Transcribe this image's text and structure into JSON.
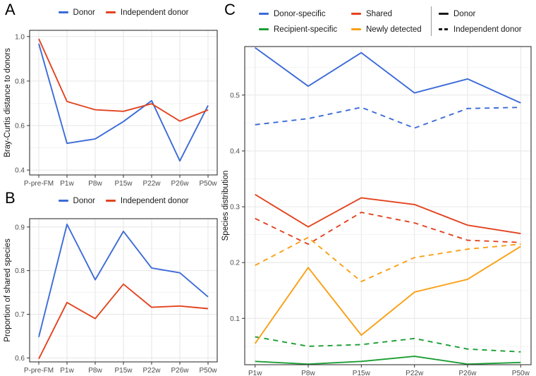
{
  "panels": {
    "A": {
      "letter": "A",
      "ylabel": "Bray-Curtis distance to donors"
    },
    "B": {
      "letter": "B",
      "ylabel": "Proportion of shared species"
    },
    "C": {
      "letter": "C",
      "ylabel": "Species distribution"
    }
  },
  "colors": {
    "blue": "#3C6BD8",
    "red": "#E3431F",
    "green": "#1C9E34",
    "orange": "#F9A014",
    "black": "#1A1A1A",
    "grid_major": "#E6E6E6",
    "grid_minor": "#F3F3F3",
    "panel_border": "#333333",
    "tick_text": "#4D4D4D"
  },
  "chart_data": [
    {
      "type": "line",
      "panel": "A",
      "ylabel": "Bray-Curtis distance to donors",
      "categories": [
        "P-pre-FM",
        "P1w",
        "P8w",
        "P15w",
        "P22w",
        "P26w",
        "P50w"
      ],
      "yticks": [
        "0.4",
        "0.6",
        "0.8",
        "1.0"
      ],
      "ylim": [
        0.378,
        1.028
      ],
      "grid": true,
      "legend_position": "top",
      "legend": [
        {
          "label": "Donor",
          "color": "#3C6BD8",
          "dash": "solid"
        },
        {
          "label": "Independent donor",
          "color": "#E3431F",
          "dash": "solid"
        }
      ],
      "series": [
        {
          "name": "Donor",
          "color": "#3C6BD8",
          "dash": "solid",
          "values": [
            0.968,
            0.52,
            0.54,
            0.618,
            0.712,
            0.441,
            0.69
          ]
        },
        {
          "name": "Independent donor",
          "color": "#E3431F",
          "dash": "solid",
          "values": [
            0.99,
            0.708,
            0.671,
            0.664,
            0.698,
            0.62,
            0.67
          ]
        }
      ]
    },
    {
      "type": "line",
      "panel": "B",
      "ylabel": "Proportion of shared species",
      "categories": [
        "P-pre-FM",
        "P1w",
        "P8w",
        "P15w",
        "P22w",
        "P26w",
        "P50w"
      ],
      "yticks": [
        "0.6",
        "0.7",
        "0.8",
        "0.9"
      ],
      "ylim": [
        0.591,
        0.919
      ],
      "grid": true,
      "legend_position": "top",
      "legend": [
        {
          "label": "Donor",
          "color": "#3C6BD8",
          "dash": "solid"
        },
        {
          "label": "Independent donor",
          "color": "#E3431F",
          "dash": "solid"
        }
      ],
      "series": [
        {
          "name": "Donor",
          "color": "#3C6BD8",
          "dash": "solid",
          "values": [
            0.648,
            0.906,
            0.779,
            0.89,
            0.806,
            0.795,
            0.74
          ]
        },
        {
          "name": "Independent donor",
          "color": "#E3431F",
          "dash": "solid",
          "values": [
            0.598,
            0.727,
            0.69,
            0.769,
            0.716,
            0.719,
            0.713
          ]
        }
      ]
    },
    {
      "type": "line",
      "panel": "C",
      "ylabel": "Species distribution",
      "categories": [
        "P1w",
        "P8w",
        "P15w",
        "P22w",
        "P26w",
        "P50w"
      ],
      "yticks": [
        "0.1",
        "0.2",
        "0.3",
        "0.4",
        "0.5"
      ],
      "ylim": [
        0.017,
        0.587
      ],
      "grid": true,
      "legend_position": "top",
      "color_legend": [
        {
          "label": "Donor-specific",
          "color": "#3C6BD8"
        },
        {
          "label": "Recipient-specific",
          "color": "#1C9E34"
        },
        {
          "label": "Shared",
          "color": "#E3431F"
        },
        {
          "label": "Newly detected",
          "color": "#F9A014"
        }
      ],
      "linetype_legend": [
        {
          "label": "Donor",
          "dash": "solid",
          "color": "#1A1A1A"
        },
        {
          "label": "Independent donor",
          "dash": "dashed",
          "color": "#1A1A1A"
        }
      ],
      "series": [
        {
          "name": "Donor-specific",
          "linetype": "Donor",
          "color": "#3C6BD8",
          "dash": "solid",
          "values": [
            0.585,
            0.516,
            0.576,
            0.504,
            0.529,
            0.486
          ]
        },
        {
          "name": "Donor-specific",
          "linetype": "Independent donor",
          "color": "#3C6BD8",
          "dash": "dashed",
          "values": [
            0.447,
            0.458,
            0.478,
            0.441,
            0.476,
            0.478
          ]
        },
        {
          "name": "Shared",
          "linetype": "Donor",
          "color": "#E3431F",
          "dash": "solid",
          "values": [
            0.322,
            0.264,
            0.316,
            0.304,
            0.267,
            0.252
          ]
        },
        {
          "name": "Shared",
          "linetype": "Independent donor",
          "color": "#E3431F",
          "dash": "dashed",
          "values": [
            0.279,
            0.233,
            0.29,
            0.271,
            0.24,
            0.236
          ]
        },
        {
          "name": "Recipient-specific",
          "linetype": "Donor",
          "color": "#1C9E34",
          "dash": "solid",
          "values": [
            0.023,
            0.018,
            0.023,
            0.032,
            0.018,
            0.021
          ]
        },
        {
          "name": "Recipient-specific",
          "linetype": "Independent donor",
          "color": "#1C9E34",
          "dash": "dashed",
          "values": [
            0.067,
            0.05,
            0.053,
            0.064,
            0.045,
            0.04
          ]
        },
        {
          "name": "Newly detected",
          "linetype": "Donor",
          "color": "#F9A014",
          "dash": "solid",
          "values": [
            0.055,
            0.191,
            0.07,
            0.147,
            0.17,
            0.229
          ]
        },
        {
          "name": "Newly detected",
          "linetype": "Independent donor",
          "color": "#F9A014",
          "dash": "dashed",
          "values": [
            0.195,
            0.245,
            0.166,
            0.209,
            0.224,
            0.233
          ]
        }
      ]
    }
  ]
}
